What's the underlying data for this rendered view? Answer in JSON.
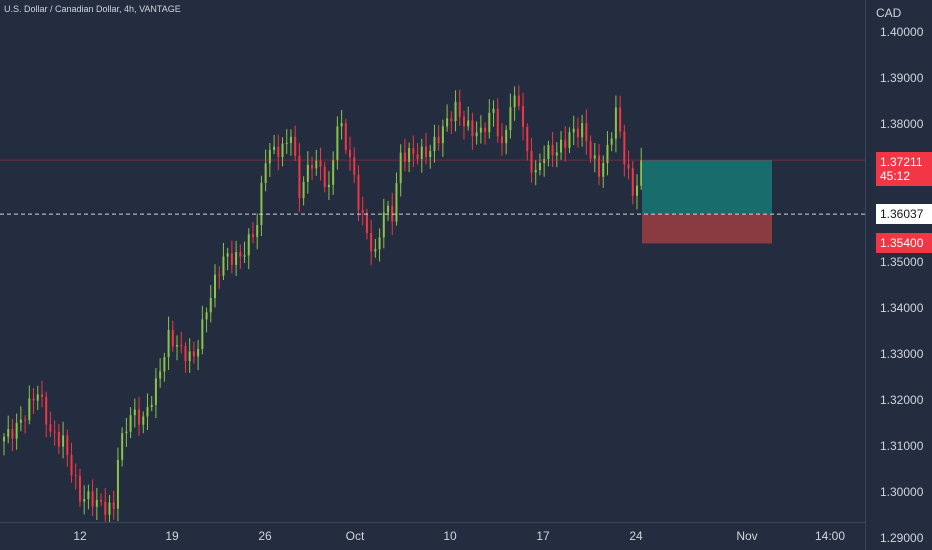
{
  "header": {
    "title": "U.S. Dollar / Canadian Dollar, 4h, VANTAGE"
  },
  "price_axis": {
    "currency": "CAD"
  },
  "current_price": {
    "price": "1.37211",
    "countdown": "45:12",
    "value": 1.37211,
    "color": "#f23645"
  },
  "crosshair": {
    "price": "1.36037",
    "value": 1.36037
  },
  "stop_level": {
    "price": "1.35400",
    "value": 1.354,
    "color": "#f23645"
  },
  "position_tool": {
    "entry": 1.36037,
    "target": 1.37211,
    "stop": 1.354,
    "profit_color": "#186c6b",
    "loss_color": "#8a3b42"
  },
  "colors": {
    "up": "#8bc34a",
    "down": "#f23645",
    "background": "#232d3f"
  },
  "chart_data": {
    "type": "candlestick",
    "title": "U.S. Dollar / Canadian Dollar, 4h, VANTAGE",
    "ylabel": "CAD",
    "ylim": [
      1.2874,
      1.4069
    ],
    "y_ticks": [
      "1.40000",
      "1.39000",
      "1.38000",
      "1.37000",
      "1.36000",
      "1.35000",
      "1.34000",
      "1.33000",
      "1.32000",
      "1.31000",
      "1.30000",
      "1.29000"
    ],
    "x_ticks": [
      "12",
      "19",
      "26",
      "Oct",
      "10",
      "17",
      "24",
      "Nov",
      "14:00"
    ],
    "grid": false,
    "anchors": [
      [
        0,
        1.312
      ],
      [
        4,
        1.316
      ],
      [
        8,
        1.321
      ],
      [
        11,
        1.313
      ],
      [
        14,
        1.312
      ],
      [
        18,
        1.298
      ],
      [
        22,
        1.298
      ],
      [
        26,
        1.297
      ],
      [
        27,
        1.308
      ],
      [
        30,
        1.316
      ],
      [
        33,
        1.316
      ],
      [
        36,
        1.324
      ],
      [
        39,
        1.333
      ],
      [
        42,
        1.33
      ],
      [
        45,
        1.33
      ],
      [
        48,
        1.34
      ],
      [
        52,
        1.35
      ],
      [
        56,
        1.352
      ],
      [
        60,
        1.358
      ],
      [
        62,
        1.372
      ],
      [
        64,
        1.374
      ],
      [
        66,
        1.375
      ],
      [
        68,
        1.379
      ],
      [
        70,
        1.365
      ],
      [
        73,
        1.371
      ],
      [
        75,
        1.37
      ],
      [
        77,
        1.366
      ],
      [
        79,
        1.381
      ],
      [
        80,
        1.379
      ],
      [
        82,
        1.372
      ],
      [
        84,
        1.362
      ],
      [
        86,
        1.356
      ],
      [
        88,
        1.352
      ],
      [
        90,
        1.362
      ],
      [
        92,
        1.36
      ],
      [
        94,
        1.372
      ],
      [
        96,
        1.373
      ],
      [
        98,
        1.374
      ],
      [
        101,
        1.375
      ],
      [
        104,
        1.378
      ],
      [
        107,
        1.383
      ],
      [
        110,
        1.38
      ],
      [
        113,
        1.378
      ],
      [
        116,
        1.382
      ],
      [
        118,
        1.374
      ],
      [
        120,
        1.385
      ],
      [
        122,
        1.386
      ],
      [
        124,
        1.373
      ],
      [
        126,
        1.368
      ],
      [
        128,
        1.373
      ],
      [
        131,
        1.375
      ],
      [
        134,
        1.378
      ],
      [
        137,
        1.378
      ],
      [
        139,
        1.373
      ],
      [
        141,
        1.37
      ],
      [
        143,
        1.375
      ],
      [
        145,
        1.383
      ],
      [
        147,
        1.372
      ],
      [
        149,
        1.364
      ],
      [
        150,
        1.367
      ],
      [
        151,
        1.37211
      ]
    ]
  }
}
